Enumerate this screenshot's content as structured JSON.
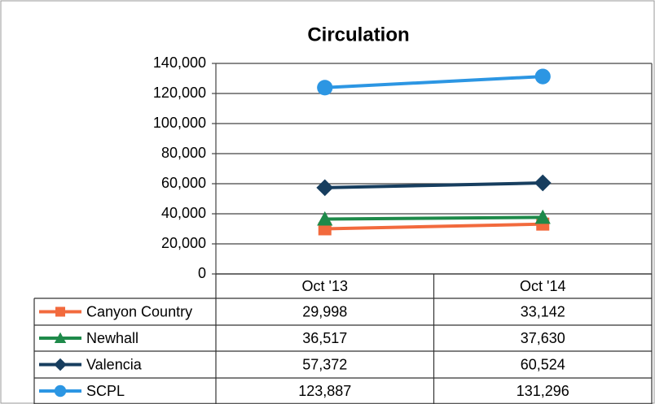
{
  "chart_data": {
    "type": "line",
    "title": "Circulation",
    "categories": [
      "Oct '13",
      "Oct '14"
    ],
    "series": [
      {
        "name": "Canyon Country",
        "color": "#f26a3d",
        "marker": "square",
        "values": [
          29998,
          33142
        ],
        "value_labels": [
          "29,998",
          "33,142"
        ]
      },
      {
        "name": "Newhall",
        "color": "#1e8a4a",
        "marker": "triangle",
        "values": [
          36517,
          37630
        ],
        "value_labels": [
          "36,517",
          "37,630"
        ]
      },
      {
        "name": "Valencia",
        "color": "#173e5f",
        "marker": "diamond",
        "values": [
          57372,
          60524
        ],
        "value_labels": [
          "57,372",
          "60,524"
        ]
      },
      {
        "name": "SCPL",
        "color": "#2c96e3",
        "marker": "circle",
        "values": [
          123887,
          131296
        ],
        "value_labels": [
          "123,887",
          "131,296"
        ]
      }
    ],
    "ylim": [
      0,
      140000
    ],
    "yticks": [
      0,
      {
        "value": 20000,
        "label": "20,000"
      },
      {
        "value": 40000,
        "label": "40,000"
      },
      {
        "value": 60000,
        "label": "60,000"
      },
      {
        "value": 80000,
        "label": "80,000"
      },
      {
        "value": 100000,
        "label": "100,000"
      },
      {
        "value": 120000,
        "label": "120,000"
      },
      {
        "value": 140000,
        "label": "140,000"
      }
    ],
    "grid": true
  }
}
